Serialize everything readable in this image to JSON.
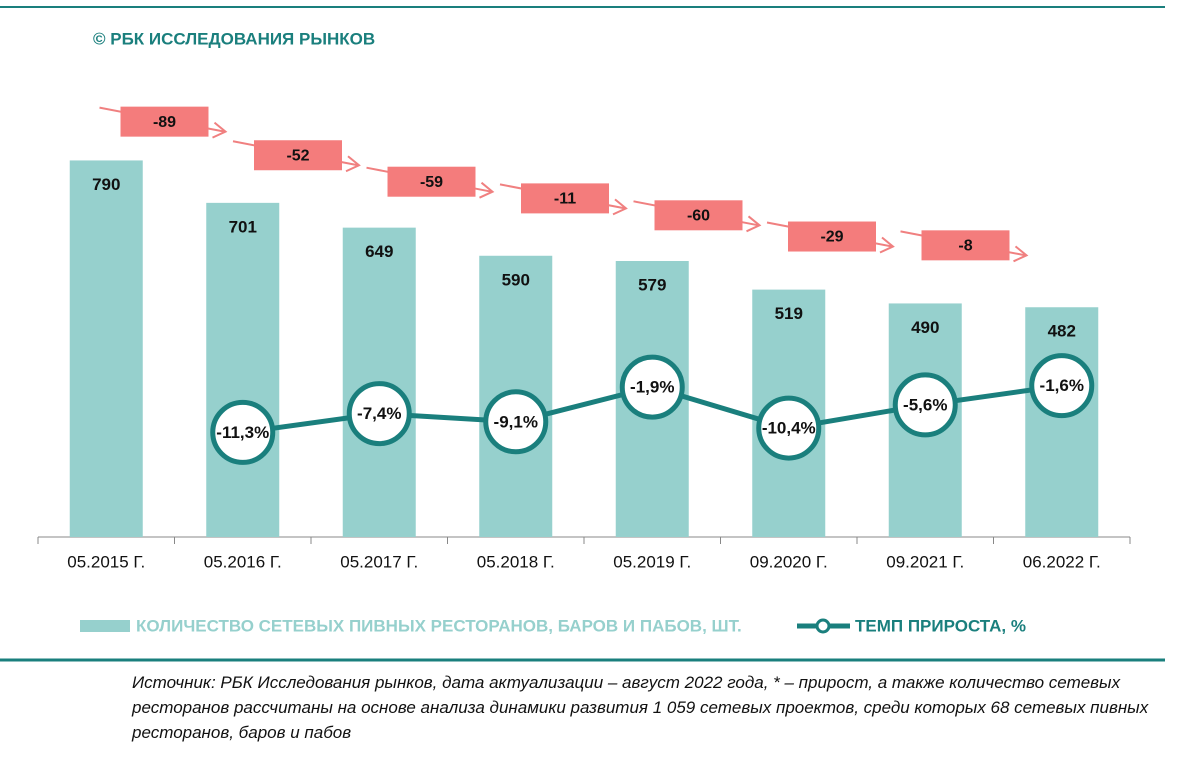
{
  "chart_data": {
    "type": "combo",
    "title": "© РБК ИССЛЕДОВАНИЯ РЫНКОВ",
    "categories": [
      "05.2015 Г.",
      "05.2016 Г.",
      "05.2017 Г.",
      "05.2018 Г.",
      "05.2019 Г.",
      "09.2020 Г.",
      "09.2021 Г.",
      "06.2022 Г."
    ],
    "series": [
      {
        "name": "КОЛИЧЕСТВО СЕТЕВЫХ ПИВНЫХ РЕСТОРАНОВ, БАРОВ И ПАБОВ, ШТ.",
        "type": "bar",
        "color": "#96d0cd",
        "values": [
          790,
          701,
          649,
          590,
          579,
          519,
          490,
          482
        ]
      },
      {
        "name": "ТЕМП ПРИРОСТА, %",
        "type": "line",
        "axis": "y2",
        "color": "#1a7f7d",
        "values": [
          null,
          -11.3,
          -7.4,
          -9.1,
          -1.9,
          -10.4,
          -5.6,
          -1.6
        ],
        "value_labels": [
          null,
          "-11,3%",
          "-7,4%",
          "-9,1%",
          "-1,9%",
          "-10,4%",
          "-5,6%",
          "-1,6%"
        ]
      }
    ],
    "changes": [
      -89,
      -52,
      -59,
      -11,
      -60,
      -29,
      -8
    ],
    "changes_color": "#f47c7c",
    "ylim": [
      0,
      900
    ],
    "y2lim": [
      -33,
      56
    ],
    "grid": false,
    "source": "Источник: РБК Исследования рынков, дата актуализации – август 2022 года, * – прирост, а также количество сетевых ресторанов рассчитаны на основе анализа динамики развития 1 059 сетевых проектов, среди которых 68 сетевых пивных ресторанов, баров и пабов"
  }
}
